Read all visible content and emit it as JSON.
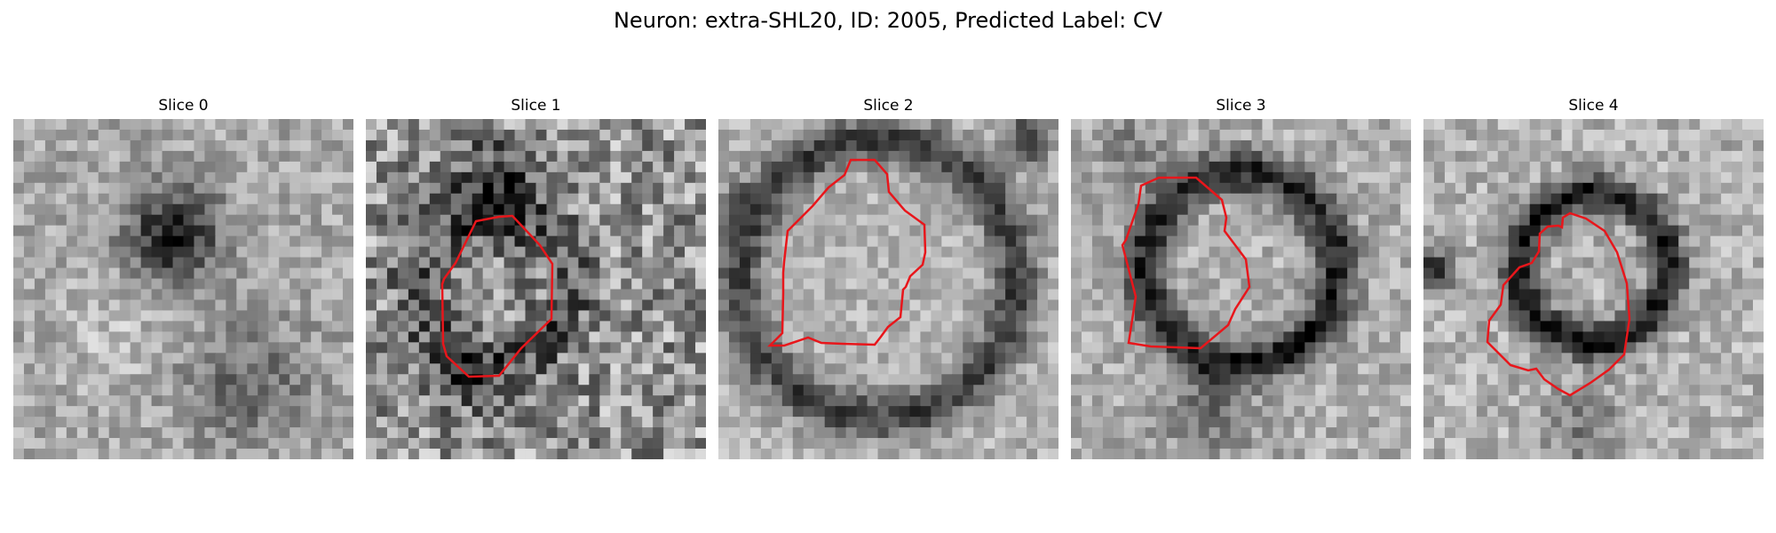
{
  "title": "Neuron: extra-SHL20, ID: 2005, Predicted Label: CV",
  "panels": [
    {
      "label": "Slice 0"
    },
    {
      "label": "Slice 1"
    },
    {
      "label": "Slice 2"
    },
    {
      "label": "Slice 3"
    },
    {
      "label": "Slice 4"
    }
  ],
  "colors": {
    "contour": "#e8161b",
    "colormap": "gray"
  }
}
